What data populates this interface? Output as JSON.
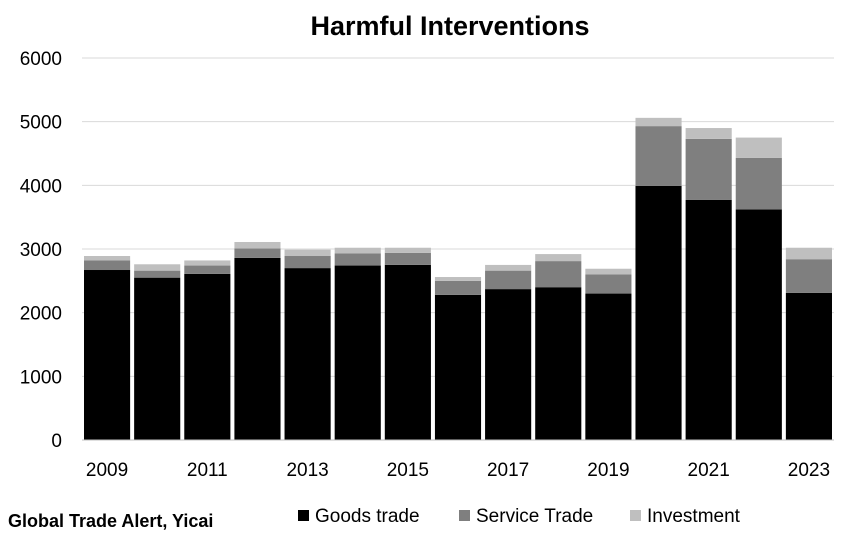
{
  "chart_data": {
    "type": "bar",
    "stacked": true,
    "title": "Harmful Interventions",
    "xlabel": "",
    "ylabel": "",
    "ylim": [
      0,
      6000
    ],
    "yticks": [
      0,
      1000,
      2000,
      3000,
      4000,
      5000,
      6000
    ],
    "grid": true,
    "legend_position": "bottom",
    "categories": [
      "2009",
      "2010",
      "2011",
      "2012",
      "2013",
      "2014",
      "2015",
      "2016",
      "2017",
      "2018",
      "2019",
      "2020",
      "2021",
      "2022",
      "2023"
    ],
    "xtick_labels": [
      "2009",
      "2011",
      "2013",
      "2015",
      "2017",
      "2019",
      "2021",
      "2023"
    ],
    "series": [
      {
        "name": "Goods trade",
        "color": "#000000",
        "values": [
          2670,
          2550,
          2610,
          2860,
          2700,
          2740,
          2750,
          2280,
          2370,
          2400,
          2300,
          3990,
          3770,
          3620,
          2310
        ]
      },
      {
        "name": "Service Trade",
        "color": "#7f7f7f",
        "values": [
          150,
          110,
          130,
          150,
          190,
          190,
          190,
          220,
          290,
          410,
          300,
          940,
          960,
          810,
          530
        ]
      },
      {
        "name": "Investment",
        "color": "#bfbfbf",
        "values": [
          70,
          100,
          80,
          100,
          100,
          90,
          80,
          60,
          90,
          110,
          90,
          130,
          170,
          320,
          180
        ]
      }
    ],
    "source": "Global Trade Alert, Yicai"
  }
}
